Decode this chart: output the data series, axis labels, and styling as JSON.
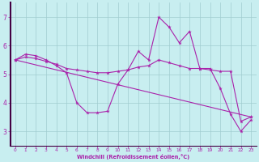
{
  "xlabel": "Windchill (Refroidissement éolien,°C)",
  "background_color": "#c8eef0",
  "grid_color": "#a0ccd0",
  "line_color": "#aa22aa",
  "axis_color": "#553355",
  "xlim": [
    -0.5,
    23.5
  ],
  "ylim": [
    2.5,
    7.5
  ],
  "yticks": [
    3,
    4,
    5,
    6,
    7
  ],
  "xticks": [
    0,
    1,
    2,
    3,
    4,
    5,
    6,
    7,
    8,
    9,
    10,
    11,
    12,
    13,
    14,
    15,
    16,
    17,
    18,
    19,
    20,
    21,
    22,
    23
  ],
  "series": [
    {
      "x": [
        0,
        1,
        2,
        3,
        4,
        5,
        6,
        7,
        8,
        9,
        10,
        11,
        12,
        13,
        14,
        15,
        16,
        17,
        18,
        19,
        20,
        21,
        22,
        23
      ],
      "y": [
        5.5,
        5.7,
        5.65,
        5.5,
        5.3,
        5.05,
        4.0,
        3.65,
        3.65,
        3.7,
        4.65,
        5.15,
        5.8,
        5.5,
        7.0,
        6.65,
        6.1,
        6.5,
        5.2,
        5.2,
        4.5,
        3.6,
        3.0,
        3.4
      ]
    },
    {
      "x": [
        0,
        23
      ],
      "y": [
        5.5,
        3.5
      ]
    },
    {
      "x": [
        0,
        1,
        2,
        3,
        4,
        5,
        6,
        7,
        8,
        9,
        10,
        11,
        12,
        13,
        14,
        15,
        16,
        17,
        18,
        19,
        20,
        21,
        22,
        23
      ],
      "y": [
        5.5,
        5.6,
        5.55,
        5.45,
        5.35,
        5.2,
        5.15,
        5.1,
        5.05,
        5.05,
        5.1,
        5.15,
        5.25,
        5.3,
        5.5,
        5.4,
        5.3,
        5.2,
        5.2,
        5.15,
        5.1,
        5.1,
        3.35,
        3.5
      ]
    }
  ]
}
